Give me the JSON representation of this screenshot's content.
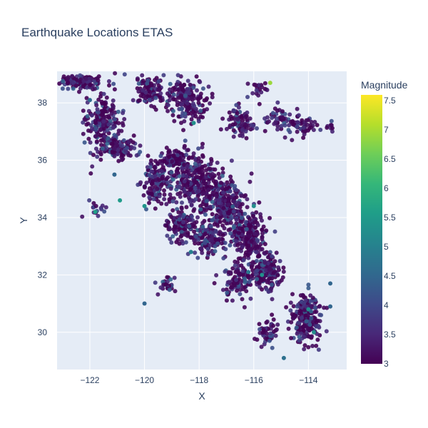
{
  "chart_data": {
    "type": "scatter",
    "title": "Earthquake Locations ETAS",
    "xlabel": "X",
    "ylabel": "Y",
    "xlim": [
      -123.2,
      -112.6
    ],
    "ylim": [
      28.7,
      39.1
    ],
    "xticks": [
      -122,
      -120,
      -118,
      -116,
      -114
    ],
    "xtick_labels": [
      "−122",
      "−120",
      "−118",
      "−116",
      "−114"
    ],
    "yticks": [
      30,
      32,
      34,
      36,
      38
    ],
    "ytick_labels": [
      "30",
      "32",
      "34",
      "36",
      "38"
    ],
    "grid": true,
    "plot_bgcolor": "#e5ecf6",
    "colorbar": {
      "title": "Magnitude",
      "range": [
        3.0,
        7.6
      ],
      "ticks": [
        3,
        3.5,
        4,
        4.5,
        5,
        5.5,
        6,
        6.5,
        7,
        7.5
      ],
      "tick_labels": [
        "3",
        "3.5",
        "4",
        "4.5",
        "5",
        "5.5",
        "6",
        "6.5",
        "7",
        "7.5"
      ],
      "colorscale": "Viridis"
    },
    "clusters": [
      {
        "x": -122.3,
        "y": 38.75,
        "sx": 0.7,
        "sy": 0.2,
        "n": 140
      },
      {
        "x": -121.5,
        "y": 37.3,
        "sx": 0.5,
        "sy": 0.7,
        "n": 190
      },
      {
        "x": -121.0,
        "y": 36.4,
        "sx": 0.7,
        "sy": 0.35,
        "n": 110
      },
      {
        "x": -119.8,
        "y": 38.4,
        "sx": 0.4,
        "sy": 0.45,
        "n": 110
      },
      {
        "x": -118.4,
        "y": 38.1,
        "sx": 0.6,
        "sy": 0.6,
        "n": 190
      },
      {
        "x": -118.9,
        "y": 36.0,
        "sx": 0.4,
        "sy": 0.35,
        "n": 90
      },
      {
        "x": -119.6,
        "y": 35.2,
        "sx": 0.4,
        "sy": 0.7,
        "n": 110
      },
      {
        "x": -118.2,
        "y": 35.3,
        "sx": 0.9,
        "sy": 0.8,
        "n": 300
      },
      {
        "x": -117.1,
        "y": 34.4,
        "sx": 0.6,
        "sy": 0.75,
        "n": 260
      },
      {
        "x": -118.5,
        "y": 33.7,
        "sx": 0.6,
        "sy": 0.5,
        "n": 140
      },
      {
        "x": -117.6,
        "y": 33.2,
        "sx": 0.5,
        "sy": 0.45,
        "n": 110
      },
      {
        "x": -116.2,
        "y": 33.3,
        "sx": 0.5,
        "sy": 0.7,
        "n": 230
      },
      {
        "x": -115.6,
        "y": 32.1,
        "sx": 0.5,
        "sy": 0.55,
        "n": 180
      },
      {
        "x": -116.6,
        "y": 31.8,
        "sx": 0.5,
        "sy": 0.5,
        "n": 90
      },
      {
        "x": -114.1,
        "y": 30.5,
        "sx": 0.45,
        "sy": 0.65,
        "n": 240
      },
      {
        "x": -115.5,
        "y": 30.0,
        "sx": 0.3,
        "sy": 0.4,
        "n": 50
      },
      {
        "x": -116.5,
        "y": 37.3,
        "sx": 0.35,
        "sy": 0.4,
        "n": 80
      },
      {
        "x": -114.2,
        "y": 37.2,
        "sx": 0.4,
        "sy": 0.3,
        "n": 50
      },
      {
        "x": -115.0,
        "y": 37.4,
        "sx": 0.4,
        "sy": 0.4,
        "n": 50
      },
      {
        "x": -115.8,
        "y": 38.5,
        "sx": 0.3,
        "sy": 0.2,
        "n": 20
      },
      {
        "x": -119.2,
        "y": 31.6,
        "sx": 0.3,
        "sy": 0.25,
        "n": 25
      },
      {
        "x": -121.7,
        "y": 34.3,
        "sx": 0.3,
        "sy": 0.3,
        "n": 15
      },
      {
        "x": -113.2,
        "y": 37.2,
        "sx": 0.15,
        "sy": 0.15,
        "n": 8
      }
    ],
    "notable_points": [
      {
        "x": -115.4,
        "y": 38.7,
        "mag": 6.9
      },
      {
        "x": -121.8,
        "y": 34.2,
        "mag": 5.6
      },
      {
        "x": -120.9,
        "y": 34.6,
        "mag": 5.5
      },
      {
        "x": -120.0,
        "y": 34.4,
        "mag": 5.4
      },
      {
        "x": -118.2,
        "y": 37.3,
        "mag": 5.3
      },
      {
        "x": -116.0,
        "y": 34.4,
        "mag": 5.3
      },
      {
        "x": -115.7,
        "y": 32.0,
        "mag": 5.3
      },
      {
        "x": -113.8,
        "y": 30.0,
        "mag": 5.2
      },
      {
        "x": -118.3,
        "y": 32.8,
        "mag": 5.0
      },
      {
        "x": -114.0,
        "y": 30.8,
        "mag": 5.2
      },
      {
        "x": -116.2,
        "y": 32.1,
        "mag": 4.8
      },
      {
        "x": -114.9,
        "y": 29.1,
        "mag": 4.7
      },
      {
        "x": -120.0,
        "y": 31.0,
        "mag": 4.5
      },
      {
        "x": -113.2,
        "y": 31.7,
        "mag": 4.5
      },
      {
        "x": -113.2,
        "y": 30.9,
        "mag": 4.5
      },
      {
        "x": -122.0,
        "y": 38.1,
        "mag": 4.6
      },
      {
        "x": -121.1,
        "y": 35.5,
        "mag": 4.5
      }
    ]
  }
}
